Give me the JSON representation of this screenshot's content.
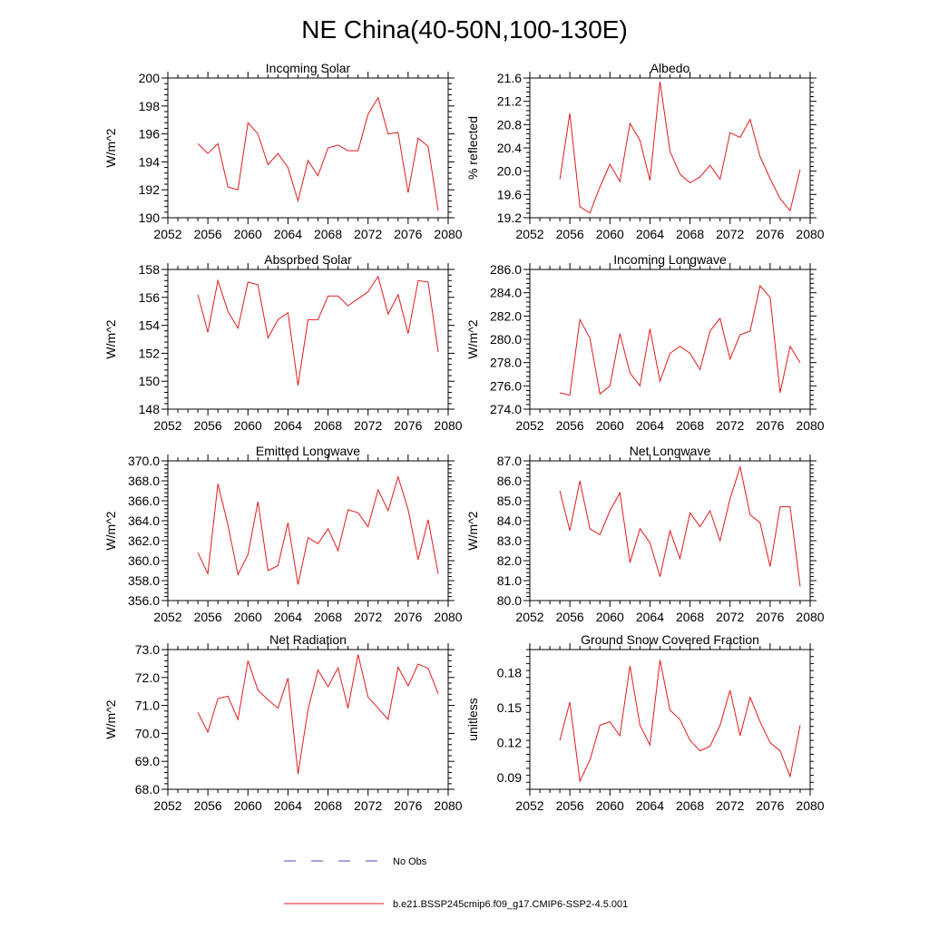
{
  "title": "NE China(40-50N,100-130E)",
  "legend": {
    "placement": "bottom",
    "items": [
      {
        "label": "No Obs",
        "style": "dashed",
        "color": "#4a4ac8"
      },
      {
        "label": "b.e21.BSSP245cmip6.f09_g17.CMIP6-SSP2-4.5.001",
        "style": "solid",
        "color": "#e31a1c"
      }
    ]
  },
  "series_color": "#e31a1c",
  "chart_data": [
    {
      "type": "line",
      "title": "Incoming Solar",
      "xlabel": "",
      "ylabel": "W/m^2",
      "xlim": [
        2052,
        2080
      ],
      "ylim": [
        190,
        200
      ],
      "xticks": [
        "2052",
        "2056",
        "2060",
        "2064",
        "2068",
        "2072",
        "2076",
        "2080"
      ],
      "yticks": [
        "190",
        "192",
        "194",
        "196",
        "198",
        "200"
      ],
      "x": [
        2055,
        2056,
        2057,
        2058,
        2059,
        2060,
        2061,
        2062,
        2063,
        2064,
        2065,
        2066,
        2067,
        2068,
        2069,
        2070,
        2071,
        2072,
        2073,
        2074,
        2075,
        2076,
        2077,
        2078,
        2079
      ],
      "values": [
        195.3,
        194.6,
        195.3,
        192.2,
        192.0,
        196.8,
        196.0,
        193.8,
        194.6,
        193.6,
        191.2,
        194.1,
        193.0,
        195.0,
        195.2,
        194.8,
        194.8,
        197.4,
        198.6,
        196.0,
        196.1,
        191.8,
        195.7,
        195.1,
        190.5
      ]
    },
    {
      "type": "line",
      "title": "Albedo",
      "xlabel": "",
      "ylabel": "% reflected",
      "xlim": [
        2052,
        2080
      ],
      "ylim": [
        19.2,
        21.6
      ],
      "xticks": [
        "2052",
        "2056",
        "2060",
        "2064",
        "2068",
        "2072",
        "2076",
        "2080"
      ],
      "yticks": [
        "19.2",
        "19.6",
        "20.0",
        "20.4",
        "20.8",
        "21.2",
        "21.6"
      ],
      "x": [
        2055,
        2056,
        2057,
        2058,
        2059,
        2060,
        2061,
        2062,
        2063,
        2064,
        2065,
        2066,
        2067,
        2068,
        2069,
        2070,
        2071,
        2072,
        2073,
        2074,
        2075,
        2076,
        2077,
        2078,
        2079
      ],
      "values": [
        19.86,
        20.99,
        19.39,
        19.28,
        19.73,
        20.12,
        19.82,
        20.82,
        20.53,
        19.84,
        21.54,
        20.34,
        19.95,
        19.8,
        19.9,
        20.1,
        19.86,
        20.66,
        20.58,
        20.89,
        20.25,
        19.87,
        19.53,
        19.32,
        20.03
      ]
    },
    {
      "type": "line",
      "title": "Absorbed Solar",
      "xlabel": "",
      "ylabel": "W/m^2",
      "xlim": [
        2052,
        2080
      ],
      "ylim": [
        148,
        158
      ],
      "xticks": [
        "2052",
        "2056",
        "2060",
        "2064",
        "2068",
        "2072",
        "2076",
        "2080"
      ],
      "yticks": [
        "148",
        "150",
        "152",
        "154",
        "156",
        "158"
      ],
      "x": [
        2055,
        2056,
        2057,
        2058,
        2059,
        2060,
        2061,
        2062,
        2063,
        2064,
        2065,
        2066,
        2067,
        2068,
        2069,
        2070,
        2071,
        2072,
        2073,
        2074,
        2075,
        2076,
        2077,
        2078,
        2079
      ],
      "values": [
        156.2,
        153.5,
        157.2,
        155.0,
        153.8,
        157.1,
        156.9,
        153.1,
        154.4,
        154.9,
        149.7,
        154.4,
        154.4,
        156.1,
        156.1,
        155.4,
        155.9,
        156.4,
        157.5,
        154.8,
        156.2,
        153.4,
        157.2,
        157.1,
        152.1
      ]
    },
    {
      "type": "line",
      "title": "Incoming Longwave",
      "xlabel": "",
      "ylabel": "W/m^2",
      "xlim": [
        2052,
        2080
      ],
      "ylim": [
        274.0,
        286.0
      ],
      "xticks": [
        "2052",
        "2056",
        "2060",
        "2064",
        "2068",
        "2072",
        "2076",
        "2080"
      ],
      "yticks": [
        "274.0",
        "276.0",
        "278.0",
        "280.0",
        "282.0",
        "284.0",
        "286.0"
      ],
      "x": [
        2055,
        2056,
        2057,
        2058,
        2059,
        2060,
        2061,
        2062,
        2063,
        2064,
        2065,
        2066,
        2067,
        2068,
        2069,
        2070,
        2071,
        2072,
        2073,
        2074,
        2075,
        2076,
        2077,
        2078,
        2079
      ],
      "values": [
        275.4,
        275.2,
        281.7,
        280.1,
        275.3,
        276.0,
        280.5,
        277.1,
        276.0,
        280.9,
        276.4,
        278.8,
        279.4,
        278.8,
        277.4,
        280.7,
        281.8,
        278.3,
        280.4,
        280.7,
        284.6,
        283.6,
        275.4,
        279.4,
        278.0
      ]
    },
    {
      "type": "line",
      "title": "Emitted Longwave",
      "xlabel": "",
      "ylabel": "W/m^2",
      "xlim": [
        2052,
        2080
      ],
      "ylim": [
        356.0,
        370.0
      ],
      "xticks": [
        "2052",
        "2056",
        "2060",
        "2064",
        "2068",
        "2072",
        "2076",
        "2080"
      ],
      "yticks": [
        "356.0",
        "358.0",
        "360.0",
        "362.0",
        "364.0",
        "366.0",
        "368.0",
        "370.0"
      ],
      "x": [
        2055,
        2056,
        2057,
        2058,
        2059,
        2060,
        2061,
        2062,
        2063,
        2064,
        2065,
        2066,
        2067,
        2068,
        2069,
        2070,
        2071,
        2072,
        2073,
        2074,
        2075,
        2076,
        2077,
        2078,
        2079
      ],
      "values": [
        360.8,
        358.7,
        367.7,
        363.6,
        358.6,
        360.6,
        365.9,
        359.0,
        359.5,
        363.8,
        357.6,
        362.3,
        361.7,
        363.2,
        361.0,
        365.1,
        364.8,
        363.4,
        367.1,
        365.0,
        368.4,
        365.1,
        360.1,
        364.1,
        358.7
      ]
    },
    {
      "type": "line",
      "title": "Net Longwave",
      "xlabel": "",
      "ylabel": "W/m^2",
      "xlim": [
        2052,
        2080
      ],
      "ylim": [
        80.0,
        87.0
      ],
      "xticks": [
        "2052",
        "2056",
        "2060",
        "2064",
        "2068",
        "2072",
        "2076",
        "2080"
      ],
      "yticks": [
        "80.0",
        "81.0",
        "82.0",
        "83.0",
        "84.0",
        "85.0",
        "86.0",
        "87.0"
      ],
      "x": [
        2055,
        2056,
        2057,
        2058,
        2059,
        2060,
        2061,
        2062,
        2063,
        2064,
        2065,
        2066,
        2067,
        2068,
        2069,
        2070,
        2071,
        2072,
        2073,
        2074,
        2075,
        2076,
        2077,
        2078,
        2079
      ],
      "values": [
        85.5,
        83.5,
        86.0,
        83.6,
        83.3,
        84.5,
        85.4,
        81.9,
        83.6,
        82.9,
        81.2,
        83.5,
        82.1,
        84.4,
        83.7,
        84.5,
        83.0,
        85.1,
        86.7,
        84.3,
        83.9,
        81.7,
        84.7,
        84.7,
        80.7
      ]
    },
    {
      "type": "line",
      "title": "Net Radiation",
      "xlabel": "",
      "ylabel": "W/m^2",
      "xlim": [
        2052,
        2080
      ],
      "ylim": [
        68.0,
        73.0
      ],
      "xticks": [
        "2052",
        "2056",
        "2060",
        "2064",
        "2068",
        "2072",
        "2076",
        "2080"
      ],
      "yticks": [
        "68.0",
        "69.0",
        "70.0",
        "71.0",
        "72.0",
        "73.0"
      ],
      "x": [
        2055,
        2056,
        2057,
        2058,
        2059,
        2060,
        2061,
        2062,
        2063,
        2064,
        2065,
        2066,
        2067,
        2068,
        2069,
        2070,
        2071,
        2072,
        2073,
        2074,
        2075,
        2076,
        2077,
        2078,
        2079
      ],
      "values": [
        70.75,
        70.05,
        71.25,
        71.33,
        70.5,
        72.6,
        71.55,
        71.2,
        70.9,
        71.98,
        68.55,
        70.85,
        72.27,
        71.67,
        72.35,
        70.9,
        72.82,
        71.3,
        70.9,
        70.5,
        72.37,
        71.7,
        72.48,
        72.33,
        71.42
      ]
    },
    {
      "type": "line",
      "title": "Ground Snow Covered Fraction",
      "xlabel": "",
      "ylabel": "unitless",
      "xlim": [
        2052,
        2080
      ],
      "ylim": [
        0.08,
        0.2
      ],
      "xticks": [
        "2052",
        "2056",
        "2060",
        "2064",
        "2068",
        "2072",
        "2076",
        "2080"
      ],
      "yticks": [
        "0.09",
        "0.12",
        "0.15",
        "0.18"
      ],
      "ytick_values": [
        0.09,
        0.12,
        0.15,
        0.18
      ],
      "x": [
        2055,
        2056,
        2057,
        2058,
        2059,
        2060,
        2061,
        2062,
        2063,
        2064,
        2065,
        2066,
        2067,
        2068,
        2069,
        2070,
        2071,
        2072,
        2073,
        2074,
        2075,
        2076,
        2077,
        2078,
        2079
      ],
      "values": [
        0.122,
        0.155,
        0.087,
        0.105,
        0.135,
        0.138,
        0.126,
        0.186,
        0.135,
        0.118,
        0.191,
        0.148,
        0.14,
        0.122,
        0.113,
        0.117,
        0.135,
        0.165,
        0.126,
        0.159,
        0.138,
        0.12,
        0.113,
        0.091,
        0.135
      ]
    }
  ]
}
